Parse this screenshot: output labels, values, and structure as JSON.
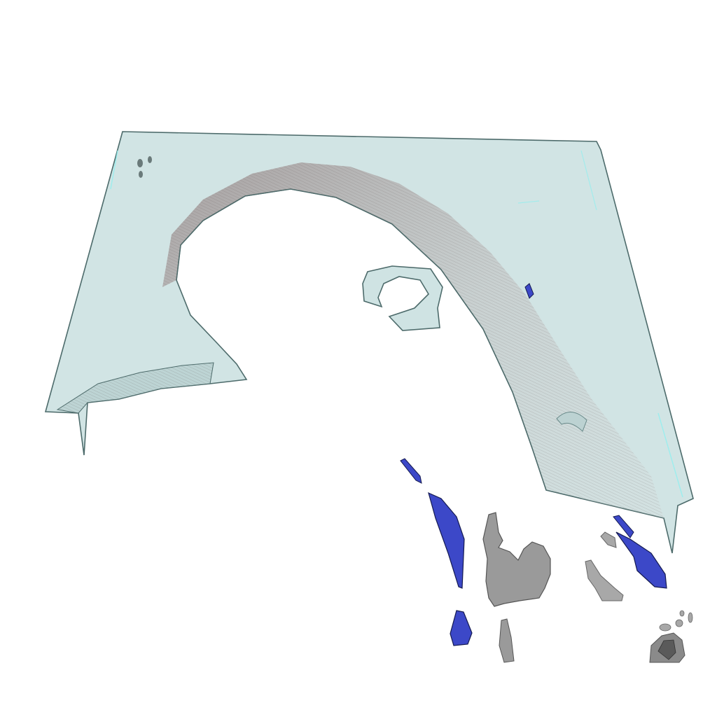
{
  "scene": {
    "kind": "3d-isosurface-render",
    "background": "#ffffff",
    "colors": {
      "sheet_fill": "#cfe3e3",
      "sheet_edge": "#4d6b6b",
      "arch_shadow": "#7a5a5a",
      "blue_structure": "#3c48c8",
      "blue_edge": "#141a50",
      "gray_structure": "#9a9a9a",
      "gray_edge": "#555555",
      "dark_gray": "#5a5a5a",
      "cyan_highlight": "#8ef0f0"
    },
    "objects": [
      "translucent-sheet",
      "arch-surface",
      "ring-fragment",
      "blue-structures",
      "gray-structures"
    ]
  }
}
